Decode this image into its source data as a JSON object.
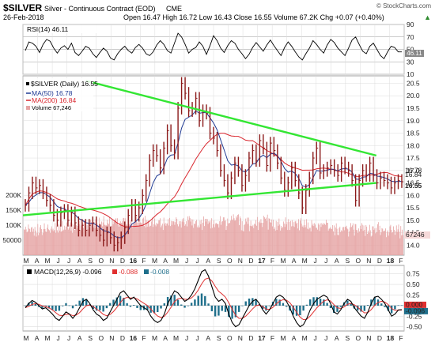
{
  "header": {
    "symbol": "$SILVER",
    "name": "Silver - Continuous Contract (EOD)",
    "exchange": "CME",
    "date": "26-Feb-2018",
    "ohlc": "Open 16.47 High 16.72 Low 16.43 Close 16.55 Volume 67.2K Chg +0.07 (+0.40%)",
    "ohlc_arrow": "▲",
    "watermark": "© StockCharts.com"
  },
  "chart_data": [
    {
      "type": "line",
      "panel": "rsi",
      "legend": "RSI(14) 46.11",
      "last_value": 46.11,
      "ylim": [
        10,
        90
      ],
      "yticks": [
        10,
        30,
        50,
        70,
        90
      ],
      "yticklabels": [
        "10",
        "30",
        "50",
        "70",
        "90"
      ],
      "reference_lines": [
        30,
        50,
        70
      ],
      "x_months": 26,
      "values": [
        48,
        62,
        60,
        55,
        45,
        58,
        66,
        63,
        52,
        44,
        52,
        56,
        50,
        60,
        45,
        40,
        47,
        55,
        52,
        43,
        37,
        45,
        52,
        47,
        36,
        33,
        43,
        50,
        55,
        48,
        44,
        53,
        58,
        52,
        43,
        40,
        46,
        57,
        64,
        58,
        48,
        44,
        60,
        76,
        70,
        58,
        44,
        50,
        53,
        62,
        55,
        42,
        56,
        72,
        64,
        52,
        45,
        56,
        64,
        60,
        50,
        43,
        35,
        42,
        53,
        61,
        54,
        47,
        57,
        65,
        56,
        48,
        40,
        53,
        62,
        55,
        46,
        38,
        33,
        43,
        52,
        64,
        58,
        50,
        44,
        57,
        66,
        61,
        52,
        46,
        40,
        52,
        65,
        70,
        58,
        47,
        43,
        55,
        60,
        50,
        40,
        35,
        46,
        55,
        53,
        46,
        46
      ]
    },
    {
      "type": "line",
      "panel": "price",
      "legend": [
        "$SILVER (Daily) 16.55",
        "MA(50) 16.78",
        "MA(200) 16.84",
        "Volume 67,246"
      ],
      "ylim": [
        13.6,
        20.8
      ],
      "yticks": [
        14.0,
        14.5,
        15.0,
        15.5,
        16.0,
        16.5,
        17.0,
        17.5,
        18.0,
        18.5,
        19.0,
        19.5,
        20.0,
        20.5
      ],
      "yticklabels": [
        "14.0",
        "14.5",
        "15.0",
        "15.5",
        "16.0",
        "16.5",
        "17.0",
        "17.5",
        "18.0",
        "18.5",
        "19.0",
        "19.5",
        "20.0",
        "20.5"
      ],
      "x_months": 26,
      "x_ticks": [
        "M",
        "A",
        "M",
        "J",
        "J",
        "A",
        "S",
        "O",
        "N",
        "D",
        "16",
        "F",
        "M",
        "A",
        "M",
        "J",
        "J",
        "A",
        "S",
        "O",
        "N",
        "D",
        "17",
        "F",
        "M",
        "A",
        "M",
        "J",
        "J",
        "A",
        "S",
        "O",
        "N",
        "D",
        "18",
        "F"
      ],
      "series": [
        {
          "name": "$SILVER (Daily)",
          "last": 16.55,
          "color": "#8b1a1a",
          "style": "hlc-bars",
          "values": [
            15.6,
            16.1,
            16.5,
            16.3,
            16.4,
            16.1,
            15.8,
            15.6,
            15.2,
            15.0,
            15.3,
            15.4,
            15.0,
            15.3,
            14.9,
            14.6,
            14.8,
            14.6,
            14.8,
            14.9,
            14.6,
            14.4,
            14.2,
            14.5,
            14.3,
            14.0,
            14.1,
            14.3,
            14.7,
            15.2,
            15.6,
            15.2,
            15.5,
            16.0,
            16.6,
            17.4,
            17.8,
            17.6,
            17.1,
            17.9,
            18.6,
            18.0,
            17.7,
            19.5,
            20.5,
            20.1,
            19.4,
            19.5,
            19.9,
            19.0,
            19.4,
            19.3,
            18.5,
            18.3,
            17.8,
            17.0,
            16.6,
            16.1,
            16.7,
            17.3,
            17.0,
            16.4,
            16.8,
            17.5,
            17.8,
            17.4,
            18.2,
            17.9,
            17.2,
            18.1,
            17.8,
            17.3,
            16.7,
            16.2,
            16.5,
            17.1,
            16.6,
            16.1,
            15.5,
            16.2,
            16.7,
            17.5,
            17.9,
            16.9,
            17.0,
            17.1,
            17.2,
            17.0,
            16.8,
            17.3,
            17.1,
            17.0,
            16.6,
            15.8,
            16.6,
            17.0,
            16.8,
            17.3,
            16.8,
            16.5,
            16.7,
            16.6,
            16.5,
            16.3,
            16.5,
            16.6,
            16.55
          ]
        },
        {
          "name": "MA(50)",
          "last": 16.78,
          "color": "#1f3a93"
        },
        {
          "name": "MA(200)",
          "last": 16.84,
          "color": "#d9262e"
        }
      ],
      "trendlines": [
        {
          "color": "#33e633",
          "from": {
            "x": 4.3,
            "y": 20.6
          },
          "to": {
            "x": 24.1,
            "y": 17.6
          }
        },
        {
          "color": "#33e633",
          "from": {
            "x": 0.0,
            "y": 15.2
          },
          "to": {
            "x": 24.1,
            "y": 16.5
          }
        }
      ],
      "price_labels": [
        "16.78",
        "16.84",
        "16.55"
      ]
    },
    {
      "type": "bar",
      "panel": "volume",
      "legend": "Volume 67,246",
      "yticks": [
        50000,
        100000,
        150000,
        200000
      ],
      "yticklabels": [
        "50000",
        "100K",
        "150K",
        "200K"
      ],
      "last_label": "67246",
      "values": [
        86,
        84,
        95,
        86,
        76,
        79,
        102,
        89,
        87,
        77,
        92,
        94,
        78,
        88,
        65,
        94,
        82,
        62,
        74,
        104,
        66,
        74,
        93,
        100,
        87,
        67,
        74,
        87,
        106,
        87,
        79,
        77,
        91,
        102,
        86,
        83,
        74,
        88,
        96,
        83,
        88,
        80,
        84,
        107,
        74,
        96,
        83,
        75,
        102,
        82,
        103,
        78,
        80,
        113,
        82,
        85,
        98,
        85,
        95,
        109,
        94,
        85,
        90,
        101,
        109,
        82,
        106,
        74,
        102,
        92,
        84,
        106,
        100,
        89,
        97,
        104,
        103,
        114,
        82,
        99,
        101,
        107,
        91,
        117,
        114,
        110,
        81,
        100,
        86,
        109,
        113,
        93,
        118,
        110,
        109,
        89,
        92,
        99,
        90,
        120,
        115,
        105,
        90,
        99,
        125,
        103,
        100,
        112,
        96,
        109,
        130,
        101,
        101,
        98,
        100,
        118,
        107,
        103,
        126,
        88,
        98,
        97,
        116,
        103,
        112,
        113,
        120,
        123,
        107,
        123,
        100,
        95,
        107,
        113,
        108,
        106,
        113,
        124,
        124,
        93,
        123,
        102,
        102,
        96,
        101,
        103,
        116,
        101,
        116,
        102,
        91,
        104,
        106,
        114,
        117,
        131,
        109,
        99,
        109,
        112,
        107,
        109,
        107,
        104,
        122,
        125,
        97,
        131,
        92,
        117,
        95,
        115,
        115,
        94,
        98,
        98,
        112,
        125,
        94,
        103,
        122,
        101,
        96,
        108,
        103,
        105,
        116,
        116,
        123,
        93,
        99,
        105,
        84,
        125,
        103,
        108,
        98,
        105,
        106,
        120,
        99,
        124,
        97,
        114,
        101,
        113,
        113,
        112,
        101,
        110,
        126,
        121,
        103,
        96,
        113,
        103,
        113,
        92,
        112,
        120,
        124,
        110,
        98,
        103,
        113,
        96,
        129,
        117,
        130,
        124,
        112,
        120,
        99,
        119,
        91,
        105,
        104,
        113,
        118,
        93,
        99,
        92,
        93,
        115,
        103,
        118,
        84,
        108,
        129,
        97,
        121,
        112,
        121,
        120,
        104,
        113,
        109,
        115,
        89,
        123,
        91,
        103,
        116,
        93,
        104,
        108,
        105,
        103,
        104,
        92,
        113,
        130,
        101,
        112,
        113,
        126,
        126,
        114,
        117,
        84,
        97,
        122,
        107,
        105,
        108,
        115,
        131,
        119,
        116,
        136,
        123,
        115,
        116,
        130,
        125,
        134,
        136,
        100,
        129,
        123,
        83,
        113,
        82,
        79,
        100,
        104,
        122,
        112,
        125,
        104,
        125,
        80,
        98,
        115,
        97,
        96,
        101,
        90,
        105,
        102,
        117,
        98,
        127,
        84,
        110,
        114,
        107,
        120,
        108,
        94,
        108,
        131,
        126,
        121,
        125,
        114,
        135,
        85,
        123,
        121,
        110,
        108,
        119,
        96,
        118,
        87,
        93,
        82,
        114,
        84,
        111,
        98,
        122,
        102,
        82,
        97,
        90,
        94,
        112,
        105,
        94,
        126,
        103,
        111,
        84,
        120,
        111,
        84,
        114,
        96,
        117,
        97,
        110,
        94,
        112,
        114,
        105,
        108,
        89,
        120,
        83,
        115,
        123,
        105,
        95,
        99,
        92,
        118,
        100,
        93,
        120,
        88,
        109,
        86,
        91,
        91,
        79,
        117,
        99,
        105,
        97,
        107,
        102,
        91,
        91,
        85,
        106,
        101,
        81,
        106,
        94,
        107,
        102,
        101,
        107,
        104,
        101,
        118,
        108,
        108,
        82,
        88,
        89,
        94,
        88,
        87,
        100,
        79,
        99,
        66,
        92,
        106,
        88,
        68,
        66,
        90,
        95,
        77,
        83,
        80,
        93,
        94,
        83,
        94,
        95,
        98,
        89,
        86,
        62,
        79,
        93,
        107,
        94,
        99,
        106,
        85,
        65,
        104,
        103,
        84,
        83,
        74,
        89,
        79,
        98,
        87,
        107,
        101,
        81,
        99,
        84,
        64,
        100,
        95,
        71,
        82,
        75,
        101,
        83,
        62,
        65,
        96,
        96,
        84,
        89,
        73,
        91,
        76,
        103,
        110,
        84,
        98,
        67,
        76,
        90,
        88,
        80,
        80,
        82,
        89,
        60,
        78,
        83,
        65,
        76,
        96,
        101,
        84,
        75,
        77,
        96,
        84,
        68,
        80,
        99,
        77,
        86,
        102,
        78,
        56,
        97,
        66,
        85,
        67
      ]
    },
    {
      "type": "line",
      "panel": "macd",
      "legend": [
        "MACD(12,26,9) -0.096",
        "-0.088",
        "-0.008"
      ],
      "ylim": [
        -0.6,
        0.95
      ],
      "yticks": [
        -0.5,
        -0.25,
        0,
        0.25,
        0.5,
        0.75
      ],
      "yticklabels": [
        "-0.50",
        "-0.25",
        "0.000",
        "0.25",
        "0.50",
        "0.75"
      ],
      "value_labels": [
        "0.000",
        "-0.096"
      ],
      "x_ticks": [
        "M",
        "A",
        "M",
        "J",
        "J",
        "A",
        "S",
        "O",
        "N",
        "D",
        "16",
        "F",
        "M",
        "A",
        "M",
        "J",
        "J",
        "A",
        "S",
        "O",
        "N",
        "D",
        "17",
        "F",
        "M",
        "A",
        "M",
        "J",
        "J",
        "A",
        "S",
        "O",
        "N",
        "D",
        "18",
        "F"
      ],
      "series": [
        {
          "name": "MACD(12,26,9)",
          "last": -0.096,
          "color": "#000000",
          "values": [
            -0.05,
            0.05,
            0.12,
            0.08,
            0.0,
            -0.08,
            -0.05,
            -0.12,
            -0.2,
            -0.3,
            -0.35,
            -0.25,
            -0.15,
            -0.2,
            -0.3,
            -0.2,
            -0.05,
            0.1,
            0.15,
            0.05,
            -0.1,
            -0.2,
            -0.25,
            -0.35,
            -0.3,
            -0.15,
            0.0,
            0.15,
            0.3,
            0.35,
            0.25,
            0.15,
            0.2,
            0.1,
            0.0,
            -0.05,
            -0.1,
            -0.25,
            -0.35,
            -0.4,
            -0.35,
            -0.2,
            0.05,
            0.2,
            0.35,
            0.3,
            0.2,
            0.1,
            0.15,
            0.25,
            0.4,
            0.6,
            0.8,
            0.85,
            0.7,
            0.45,
            0.2,
            0.1,
            0.15,
            0.05,
            -0.2,
            -0.4,
            -0.5,
            -0.45,
            -0.3,
            -0.15,
            0.0,
            0.1,
            0.15,
            0.05,
            -0.1,
            -0.2,
            -0.1,
            0.05,
            0.2,
            0.25,
            0.2,
            0.1,
            -0.05,
            -0.25,
            -0.4,
            -0.5,
            -0.45,
            -0.3,
            -0.1,
            0.05,
            0.15,
            0.2,
            0.25,
            0.2,
            0.05,
            -0.15,
            -0.2,
            -0.1,
            0.05,
            0.15,
            0.1,
            -0.05,
            -0.15,
            -0.25,
            -0.3,
            -0.15,
            0.05,
            0.2,
            0.22,
            0.15,
            0.05,
            -0.1,
            -0.25,
            -0.2,
            -0.1,
            -0.096
          ]
        },
        {
          "name": "signal",
          "last": -0.088,
          "color": "#e03030"
        },
        {
          "name": "histogram",
          "last": -0.008,
          "color": "#1f6f8b"
        }
      ]
    }
  ],
  "colors": {
    "price_bars": "#8b1a1a",
    "ma50": "#1f3a93",
    "ma200": "#d9262e",
    "trendline": "#33e633",
    "volume": "#e6a4a4",
    "rsi": "#000000",
    "macd_line": "#000000",
    "macd_signal": "#e03030",
    "macd_hist": "#1f6f8b",
    "grid": "#dcdcdc"
  }
}
